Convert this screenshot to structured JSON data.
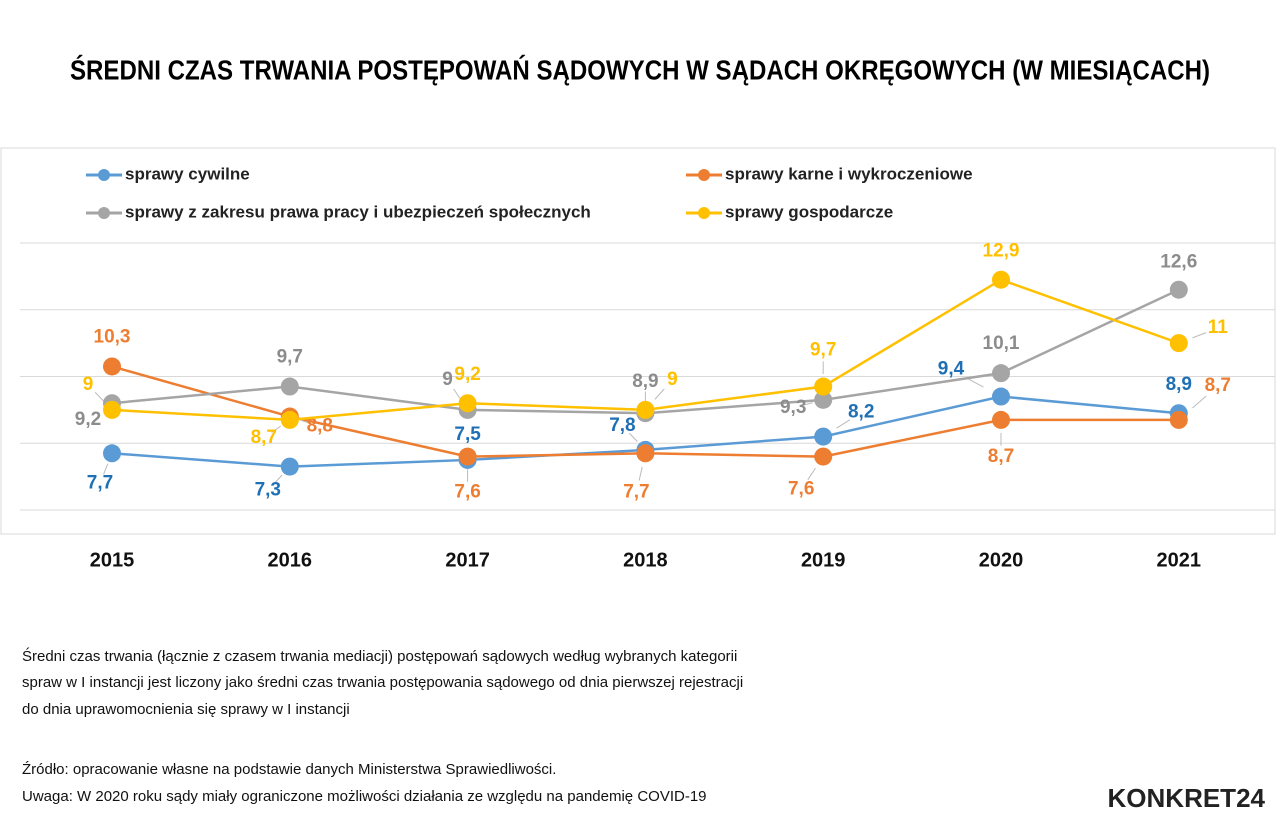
{
  "chart_data": {
    "type": "line",
    "title": "ŚREDNI CZAS TRWANIA POSTĘPOWAŃ SĄDOWYCH W SĄDACH OKRĘGOWYCH (W MIESIĄCACH)",
    "categories": [
      "2015",
      "2016",
      "2017",
      "2018",
      "2019",
      "2020",
      "2021"
    ],
    "series": [
      {
        "name": "sprawy cywilne",
        "color": "#5b9bd5",
        "label_color": "#1f6fb5",
        "values": [
          7.7,
          7.3,
          7.5,
          7.8,
          8.2,
          9.4,
          8.9
        ],
        "value_labels": [
          "7,7",
          "7,3",
          "7,5",
          "7,8",
          "8,2",
          "9,4",
          "8,9"
        ]
      },
      {
        "name": "sprawy karne i wykroczeniowe",
        "color": "#ed7d31",
        "label_color": "#ed7d31",
        "values": [
          10.3,
          8.8,
          7.6,
          7.7,
          7.6,
          8.7,
          8.7
        ],
        "value_labels": [
          "10,3",
          "8,8",
          "7,6",
          "7,7",
          "7,6",
          "8,7",
          "8,7"
        ]
      },
      {
        "name": "sprawy z zakresu prawa pracy i ubezpieczeń społecznych",
        "color": "#a5a5a5",
        "label_color": "#8c8c8c",
        "values": [
          9.2,
          9.7,
          9,
          8.9,
          9.3,
          10.1,
          12.6
        ],
        "value_labels": [
          "9,2",
          "9,7",
          "9",
          "8,9",
          "9,3",
          "10,1",
          "12,6"
        ]
      },
      {
        "name": "sprawy gospodarcze",
        "color": "#ffc000",
        "label_color": "#ffc000",
        "values": [
          9,
          8.7,
          9.2,
          9,
          9.7,
          12.9,
          11
        ],
        "value_labels": [
          "9",
          "8,7",
          "9,2",
          "9",
          "9,7",
          "12,9",
          "11"
        ]
      }
    ],
    "ylim": [
      6,
      14
    ],
    "yticks": [
      6,
      8,
      10,
      12,
      14
    ],
    "grid": true,
    "description": [
      "Średni czas trwania (łącznie z czasem trwania mediacji) postępowań sądowych według wybranych kategorii",
      "spraw w I instancji jest liczony jako średni czas trwania postępowania sądowego od dnia pierwszej rejestracji",
      "do dnia uprawomocnienia się sprawy w I instancji"
    ],
    "source": "Źródło: opracowanie własne na podstawie danych Ministerstwa Sprawiedliwości.",
    "remark": "Uwaga: W 2020 roku sądy miały ograniczone możliwości działania ze względu na pandemię COVID-19",
    "logo": "KONKRET24"
  }
}
